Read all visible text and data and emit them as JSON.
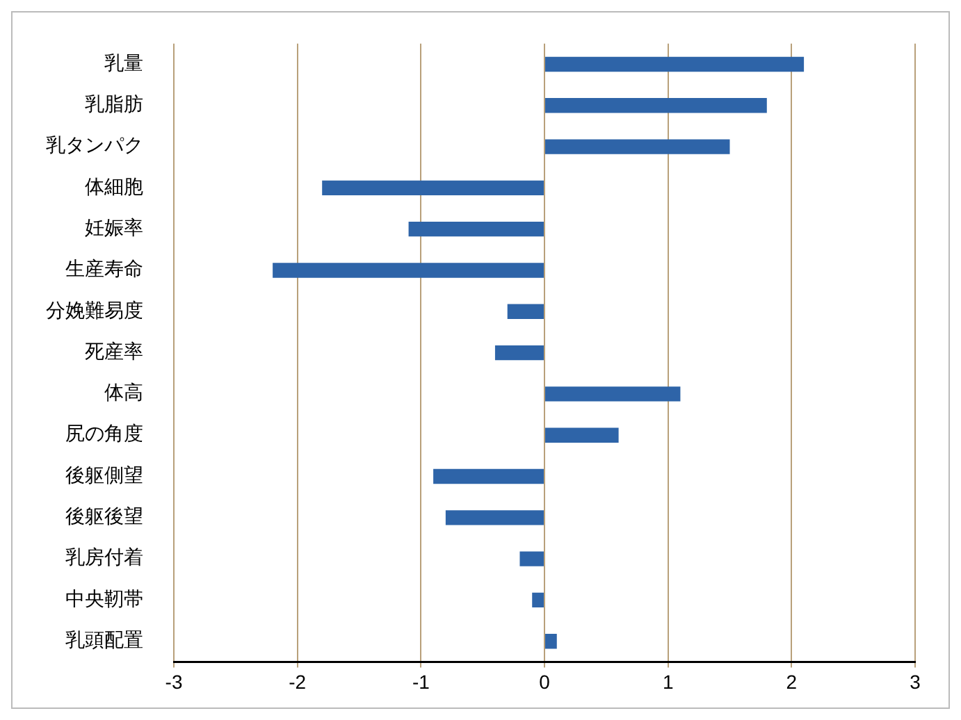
{
  "chart_data": {
    "type": "bar",
    "orientation": "horizontal",
    "categories": [
      "乳量",
      "乳脂肪",
      "乳タンパク",
      "体細胞",
      "妊娠率",
      "生産寿命",
      "分娩難易度",
      "死産率",
      "体高",
      "尻の角度",
      "後躯側望",
      "後躯後望",
      "乳房付着",
      "中央靭帯",
      "乳頭配置"
    ],
    "values": [
      2.1,
      1.8,
      1.5,
      -1.8,
      -1.1,
      -2.2,
      -0.3,
      -0.4,
      1.1,
      0.6,
      -0.9,
      -0.8,
      -0.2,
      -0.1,
      0.1
    ],
    "color": "#2e64a8",
    "xlim": [
      -3,
      3
    ],
    "xticks": [
      -3,
      -2,
      -1,
      0,
      1,
      2,
      3
    ],
    "grid": "x",
    "legend": false
  }
}
